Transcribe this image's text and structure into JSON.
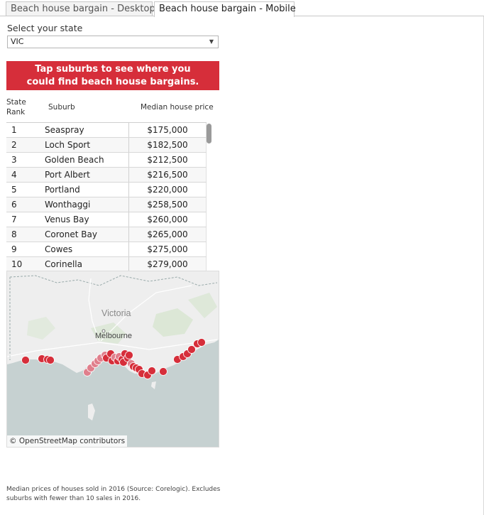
{
  "tabs": [
    {
      "label": "Beach house bargain - Desktop",
      "active": false
    },
    {
      "label": "Beach house bargain - Mobile",
      "active": true
    }
  ],
  "state_filter": {
    "label": "Select your state",
    "value": "VIC"
  },
  "banner": {
    "text": "Tap suburbs to see where you could find beach house bargains.",
    "color": "#d62e3a"
  },
  "table": {
    "headers": {
      "rank": "State Rank",
      "suburb": "Suburb",
      "price": "Median house price"
    },
    "rows": [
      {
        "rank": "1",
        "suburb": "Seaspray",
        "price": "$175,000"
      },
      {
        "rank": "2",
        "suburb": "Loch Sport",
        "price": "$182,500"
      },
      {
        "rank": "3",
        "suburb": "Golden Beach",
        "price": "$212,500"
      },
      {
        "rank": "4",
        "suburb": "Port Albert",
        "price": "$216,500"
      },
      {
        "rank": "5",
        "suburb": "Portland",
        "price": "$220,000"
      },
      {
        "rank": "6",
        "suburb": "Wonthaggi",
        "price": "$258,500"
      },
      {
        "rank": "7",
        "suburb": "Venus Bay",
        "price": "$260,000"
      },
      {
        "rank": "8",
        "suburb": "Coronet Bay",
        "price": "$265,000"
      },
      {
        "rank": "9",
        "suburb": "Cowes",
        "price": "$275,000"
      },
      {
        "rank": "10",
        "suburb": "Corinella",
        "price": "$279,000"
      }
    ]
  },
  "map": {
    "labels": {
      "state": "Victoria",
      "city": "Melbourne"
    },
    "attribution": "© OpenStreetMap contributors",
    "colors": {
      "land": "#eeeeee",
      "water": "#c6d1d1",
      "park": "#d9e6d3",
      "marker": "#d62e3a",
      "marker_light": "#e07f8c"
    }
  },
  "footnote": "Median prices of houses sold in 2016 (Source: Corelogic). Excludes suburbs with fewer than 10 sales in 2016."
}
